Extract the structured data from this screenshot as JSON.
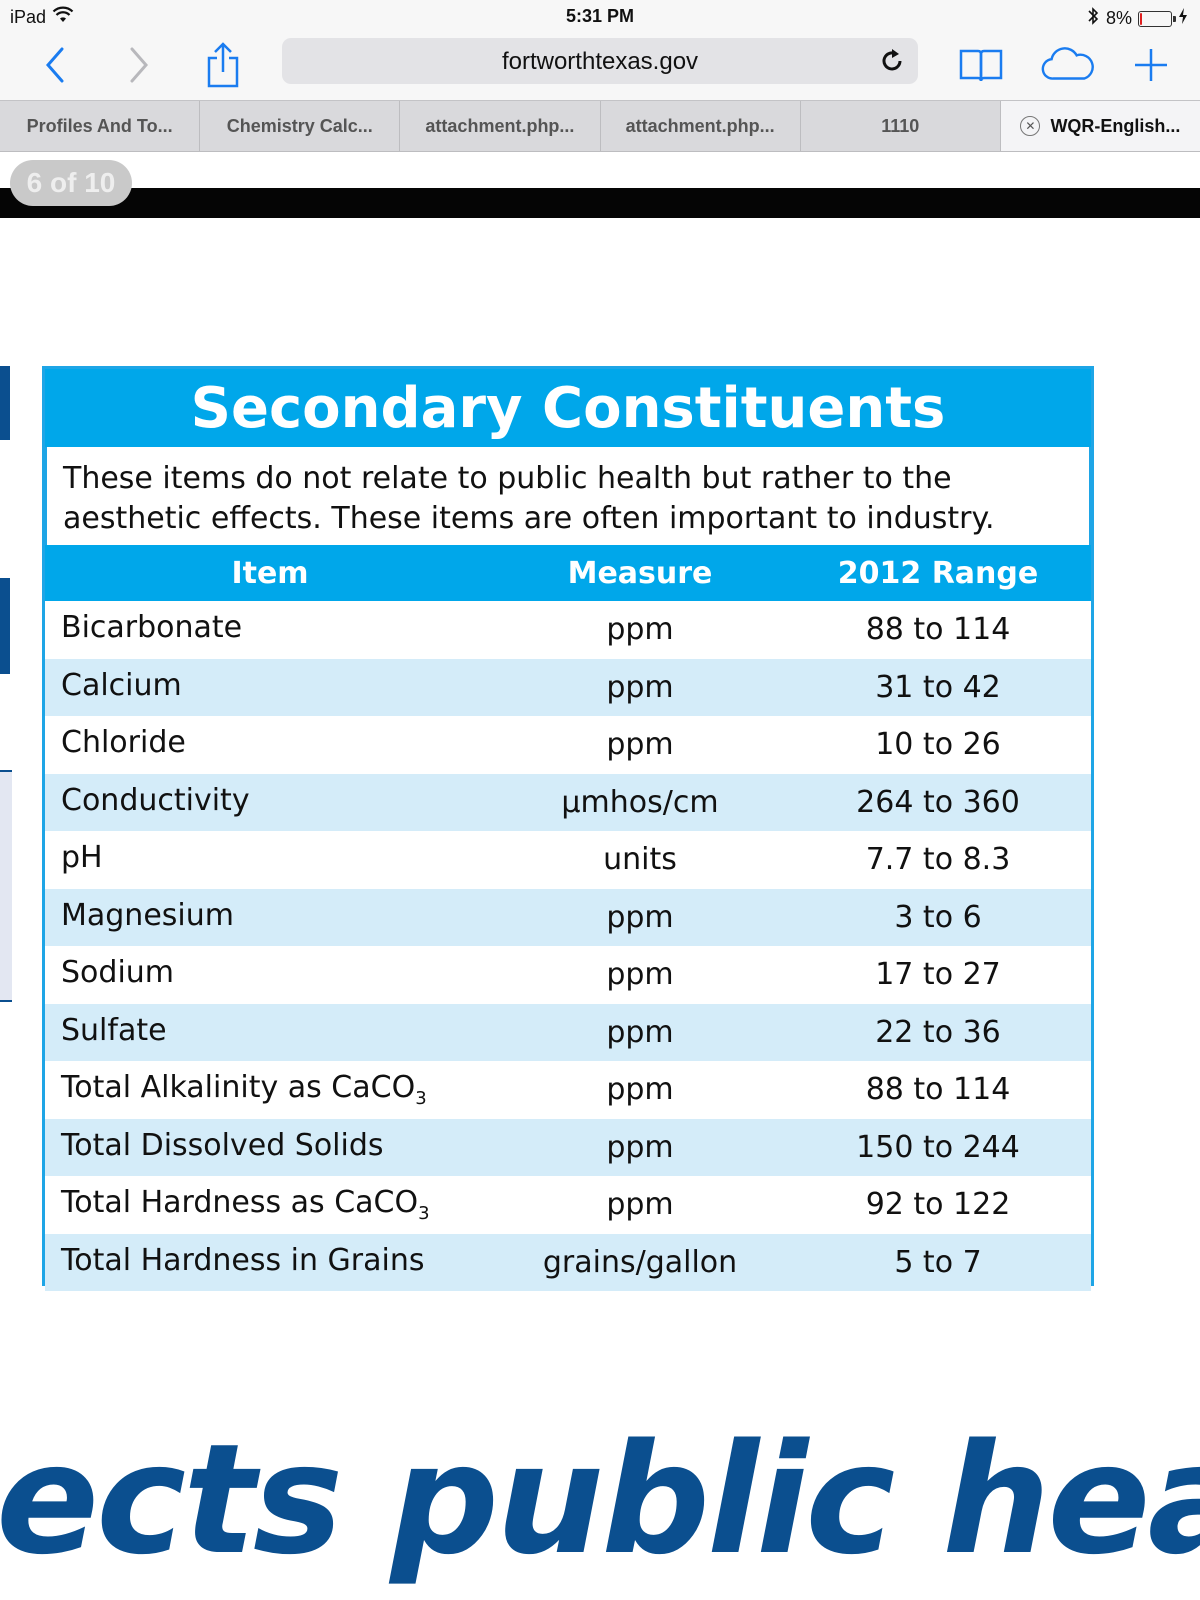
{
  "statusbar": {
    "device": "iPad",
    "time": "5:31 PM",
    "battery_percent": "8%",
    "battery_level": 0.08,
    "icons": [
      "wifi-icon",
      "bluetooth-icon",
      "battery-icon",
      "charging-icon"
    ]
  },
  "toolbar": {
    "url": "fortworthtexas.gov",
    "icons": [
      "back-icon",
      "forward-icon",
      "share-icon",
      "reload-icon",
      "bookmarks-icon",
      "cloud-tabs-icon",
      "new-tab-icon"
    ],
    "accent": "#1a7cf0"
  },
  "tabs": [
    {
      "label": "Profiles And To...",
      "active": false
    },
    {
      "label": "Chemistry Calc...",
      "active": false
    },
    {
      "label": "attachment.php...",
      "active": false
    },
    {
      "label": "attachment.php...",
      "active": false
    },
    {
      "label": "1110",
      "active": false
    },
    {
      "label": "WQR-English...",
      "active": true
    }
  ],
  "page_indicator": "6 of 10",
  "panel": {
    "title": "Secondary Constituents",
    "description": "These items do not relate to public health but rather to the aesthetic effects. These items are often important to industry.",
    "headers": {
      "item": "Item",
      "measure": "Measure",
      "range": "2012 Range"
    },
    "rows": [
      {
        "item": "Bicarbonate",
        "item_sub": "",
        "measure": "ppm",
        "range": "88 to 114"
      },
      {
        "item": "Calcium",
        "item_sub": "",
        "measure": "ppm",
        "range": "31 to 42"
      },
      {
        "item": "Chloride",
        "item_sub": "",
        "measure": "ppm",
        "range": "10 to 26"
      },
      {
        "item": "Conductivity",
        "item_sub": "",
        "measure": "µmhos/cm",
        "range": "264 to 360"
      },
      {
        "item": "pH",
        "item_sub": "",
        "measure": "units",
        "range": "7.7 to 8.3"
      },
      {
        "item": "Magnesium",
        "item_sub": "",
        "measure": "ppm",
        "range": "3 to 6"
      },
      {
        "item": "Sodium",
        "item_sub": "",
        "measure": "ppm",
        "range": "17 to 27"
      },
      {
        "item": "Sulfate",
        "item_sub": "",
        "measure": "ppm",
        "range": "22 to 36"
      },
      {
        "item": "Total Alkalinity as CaCO",
        "item_sub": "3",
        "measure": "ppm",
        "range": "88 to 114"
      },
      {
        "item": "Total Dissolved Solids",
        "item_sub": "",
        "measure": "ppm",
        "range": "150 to 244"
      },
      {
        "item": "Total Hardness as CaCO",
        "item_sub": "3",
        "measure": "ppm",
        "range": "92 to 122"
      },
      {
        "item": "Total Hardness in Grains",
        "item_sub": "",
        "measure": "grains/gallon",
        "range": "5 to 7"
      }
    ],
    "colors": {
      "header": "#00a7ea",
      "alt_row": "#d4ecf9",
      "border": "#1ea5e6"
    }
  },
  "bottom_text": "ects public health",
  "colors": {
    "brand_navy": "#0b4f8f"
  }
}
